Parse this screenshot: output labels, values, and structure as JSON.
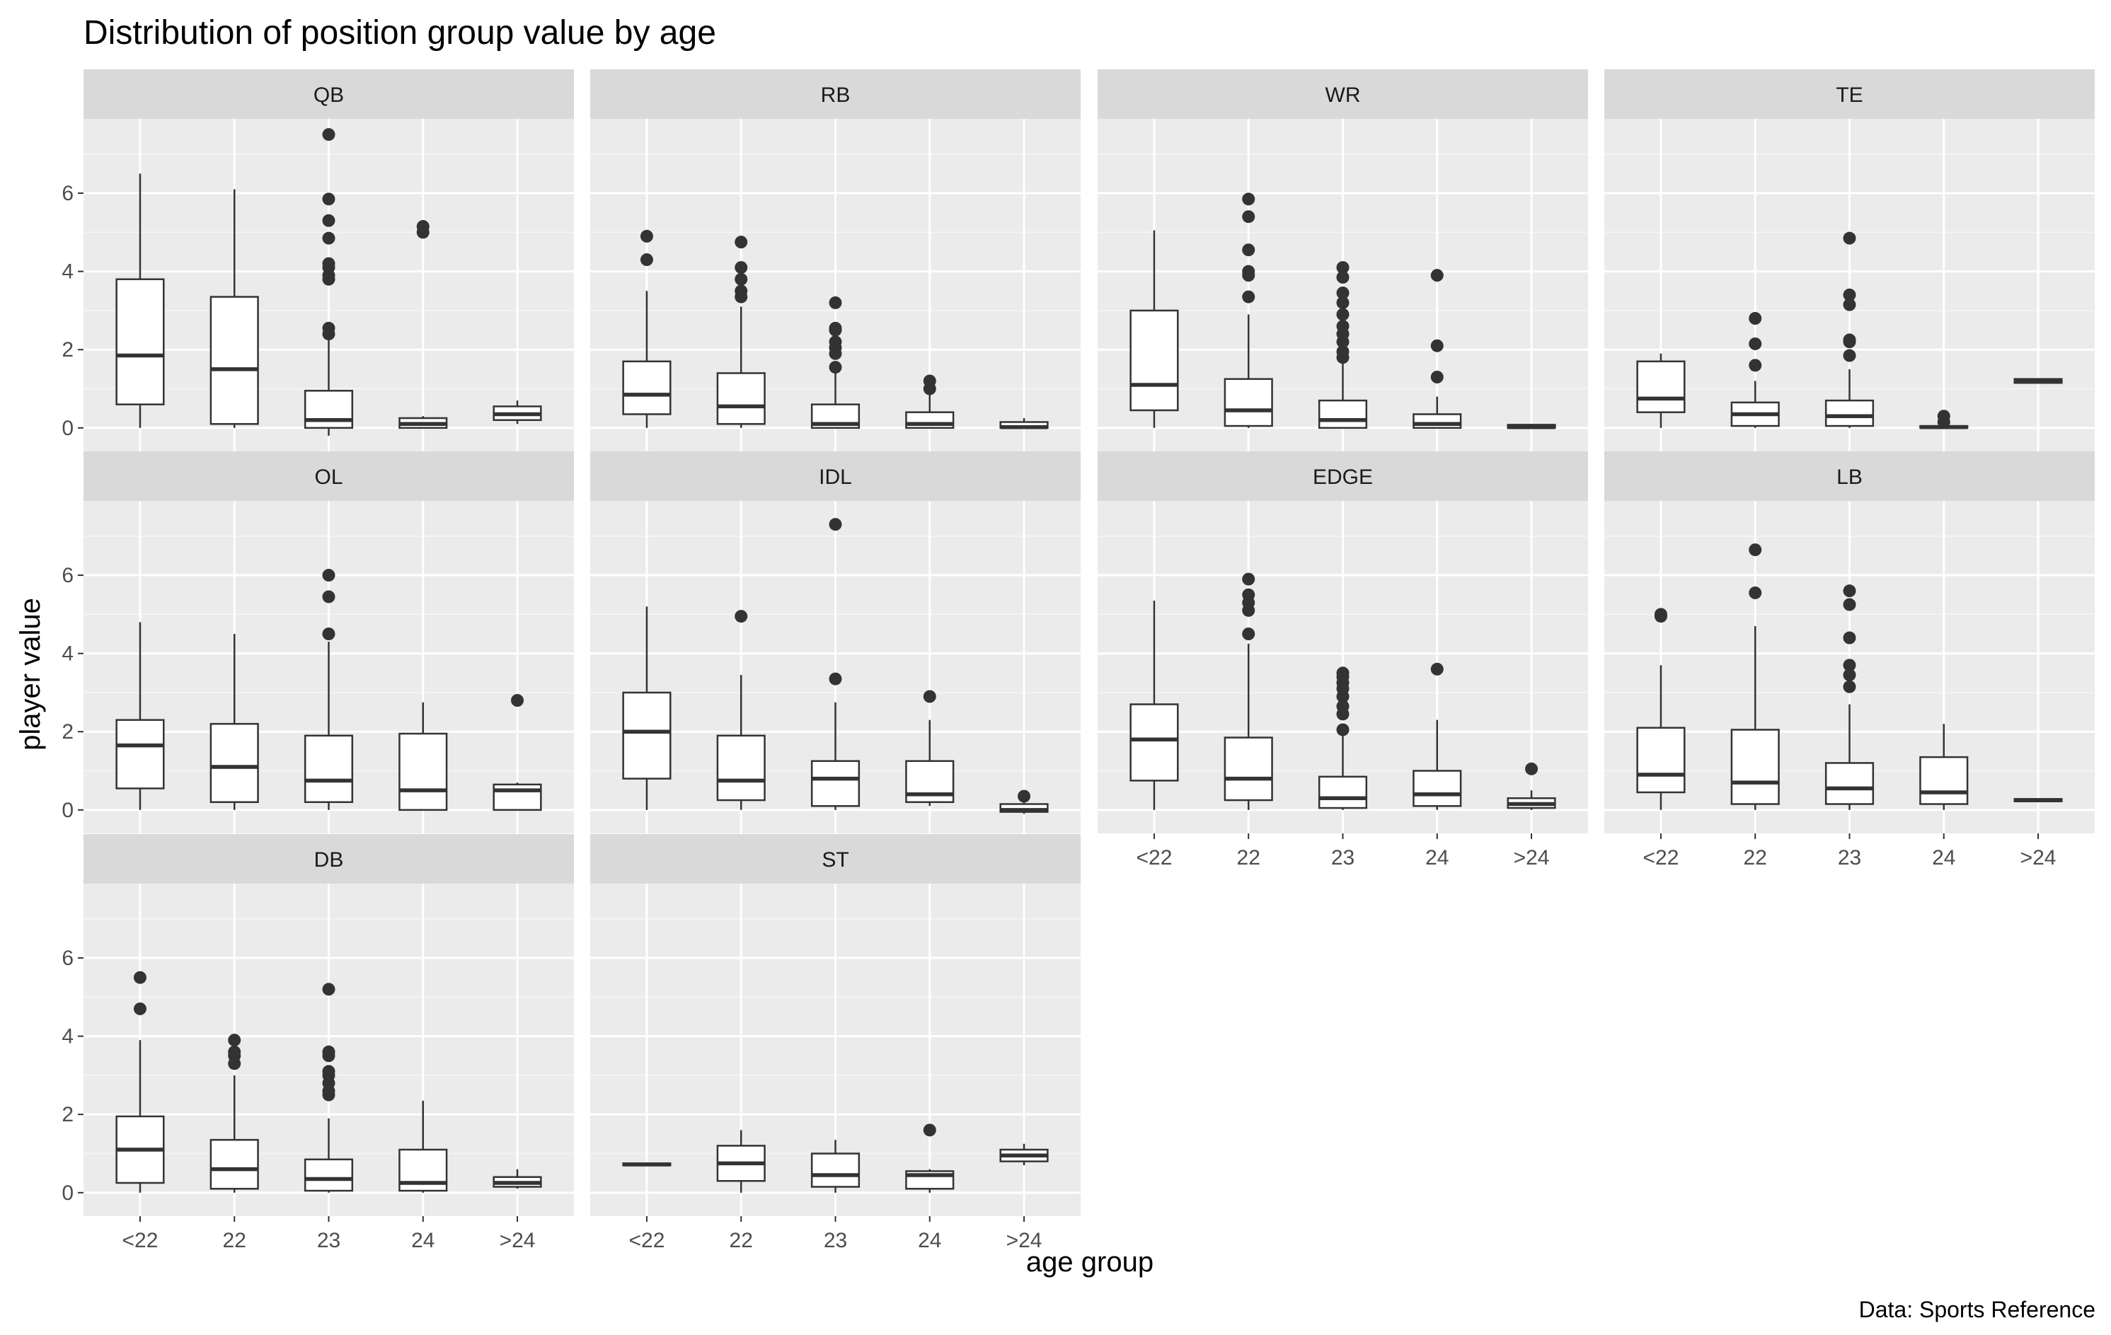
{
  "chart_data": {
    "type": "boxplot",
    "title": "Distribution of position group value by age",
    "xlabel": "age group",
    "ylabel": "player value",
    "caption": "Data: Sports Reference",
    "categories": [
      "<22",
      "22",
      "23",
      "24",
      ">24"
    ],
    "y_ticks": [
      0,
      2,
      4,
      6
    ],
    "ylim": [
      -0.6,
      7.9
    ],
    "grid": true,
    "facets": [
      {
        "name": "QB",
        "boxes": [
          {
            "q1": 0.6,
            "median": 1.85,
            "q3": 3.8,
            "lower": 0.0,
            "upper": 6.5,
            "outliers": []
          },
          {
            "q1": 0.1,
            "median": 1.5,
            "q3": 3.35,
            "lower": 0.0,
            "upper": 6.1,
            "outliers": []
          },
          {
            "q1": 0.0,
            "median": 0.2,
            "q3": 0.95,
            "lower": -0.2,
            "upper": 2.3,
            "outliers": [
              2.4,
              2.55,
              3.8,
              3.9,
              4.1,
              4.2,
              4.85,
              5.3,
              5.85,
              7.5
            ]
          },
          {
            "q1": 0.0,
            "median": 0.1,
            "q3": 0.25,
            "lower": 0.0,
            "upper": 0.3,
            "outliers": [
              5.0,
              5.15
            ]
          },
          {
            "q1": 0.2,
            "median": 0.35,
            "q3": 0.55,
            "lower": 0.1,
            "upper": 0.7,
            "outliers": []
          }
        ]
      },
      {
        "name": "RB",
        "boxes": [
          {
            "q1": 0.35,
            "median": 0.85,
            "q3": 1.7,
            "lower": 0.0,
            "upper": 3.5,
            "outliers": [
              4.3,
              4.9
            ]
          },
          {
            "q1": 0.1,
            "median": 0.55,
            "q3": 1.4,
            "lower": 0.0,
            "upper": 3.1,
            "outliers": [
              3.35,
              3.5,
              3.8,
              4.1,
              4.75
            ]
          },
          {
            "q1": 0.0,
            "median": 0.1,
            "q3": 0.6,
            "lower": 0.0,
            "upper": 1.4,
            "outliers": [
              1.55,
              1.9,
              2.05,
              2.2,
              2.5,
              2.55,
              3.2
            ]
          },
          {
            "q1": 0.0,
            "median": 0.1,
            "q3": 0.4,
            "lower": 0.0,
            "upper": 0.9,
            "outliers": [
              1.0,
              1.2
            ]
          },
          {
            "q1": 0.0,
            "median": 0.02,
            "q3": 0.15,
            "lower": 0.0,
            "upper": 0.25,
            "outliers": []
          }
        ]
      },
      {
        "name": "WR",
        "boxes": [
          {
            "q1": 0.45,
            "median": 1.1,
            "q3": 3.0,
            "lower": 0.0,
            "upper": 5.05,
            "outliers": []
          },
          {
            "q1": 0.05,
            "median": 0.45,
            "q3": 1.25,
            "lower": 0.0,
            "upper": 2.9,
            "outliers": [
              3.35,
              3.9,
              4.0,
              4.55,
              5.4,
              5.85
            ]
          },
          {
            "q1": 0.0,
            "median": 0.2,
            "q3": 0.7,
            "lower": 0.0,
            "upper": 1.7,
            "outliers": [
              1.8,
              1.95,
              2.2,
              2.4,
              2.6,
              2.9,
              3.2,
              3.45,
              3.85,
              4.1
            ]
          },
          {
            "q1": 0.0,
            "median": 0.1,
            "q3": 0.35,
            "lower": 0.0,
            "upper": 0.8,
            "outliers": [
              1.3,
              2.1,
              3.9
            ]
          },
          {
            "q1": 0.0,
            "median": 0.02,
            "q3": 0.08,
            "lower": 0.0,
            "upper": 0.1,
            "outliers": []
          }
        ]
      },
      {
        "name": "TE",
        "boxes": [
          {
            "q1": 0.4,
            "median": 0.75,
            "q3": 1.7,
            "lower": 0.0,
            "upper": 1.9,
            "outliers": []
          },
          {
            "q1": 0.05,
            "median": 0.35,
            "q3": 0.65,
            "lower": 0.0,
            "upper": 1.2,
            "outliers": [
              1.6,
              2.15,
              2.8
            ]
          },
          {
            "q1": 0.05,
            "median": 0.3,
            "q3": 0.7,
            "lower": 0.0,
            "upper": 1.5,
            "outliers": [
              1.85,
              2.2,
              2.25,
              3.15,
              3.4,
              4.85
            ]
          },
          {
            "q1": 0.0,
            "median": 0.02,
            "q3": 0.05,
            "lower": 0.0,
            "upper": 0.1,
            "outliers": [
              0.15,
              0.3
            ]
          },
          {
            "q1": 1.15,
            "median": 1.2,
            "q3": 1.25,
            "lower": 1.15,
            "upper": 1.25,
            "outliers": []
          }
        ]
      },
      {
        "name": "OL",
        "boxes": [
          {
            "q1": 0.55,
            "median": 1.65,
            "q3": 2.3,
            "lower": 0.0,
            "upper": 4.8,
            "outliers": []
          },
          {
            "q1": 0.2,
            "median": 1.1,
            "q3": 2.2,
            "lower": 0.0,
            "upper": 4.5,
            "outliers": []
          },
          {
            "q1": 0.2,
            "median": 0.75,
            "q3": 1.9,
            "lower": 0.0,
            "upper": 4.3,
            "outliers": [
              4.5,
              5.45,
              6.0
            ]
          },
          {
            "q1": 0.0,
            "median": 0.5,
            "q3": 1.95,
            "lower": 0.0,
            "upper": 2.75,
            "outliers": []
          },
          {
            "q1": 0.0,
            "median": 0.5,
            "q3": 0.65,
            "lower": 0.0,
            "upper": 0.7,
            "outliers": [
              2.8
            ]
          }
        ]
      },
      {
        "name": "IDL",
        "boxes": [
          {
            "q1": 0.8,
            "median": 2.0,
            "q3": 3.0,
            "lower": 0.0,
            "upper": 5.2,
            "outliers": []
          },
          {
            "q1": 0.25,
            "median": 0.75,
            "q3": 1.9,
            "lower": 0.0,
            "upper": 3.45,
            "outliers": [
              4.95
            ]
          },
          {
            "q1": 0.1,
            "median": 0.8,
            "q3": 1.25,
            "lower": 0.0,
            "upper": 2.75,
            "outliers": [
              3.35,
              7.3
            ]
          },
          {
            "q1": 0.2,
            "median": 0.4,
            "q3": 1.25,
            "lower": 0.1,
            "upper": 2.3,
            "outliers": [
              2.9
            ]
          },
          {
            "q1": -0.05,
            "median": 0.0,
            "q3": 0.15,
            "lower": -0.1,
            "upper": 0.2,
            "outliers": [
              0.35
            ]
          }
        ]
      },
      {
        "name": "EDGE",
        "boxes": [
          {
            "q1": 0.75,
            "median": 1.8,
            "q3": 2.7,
            "lower": 0.0,
            "upper": 5.35,
            "outliers": []
          },
          {
            "q1": 0.25,
            "median": 0.8,
            "q3": 1.85,
            "lower": 0.0,
            "upper": 4.25,
            "outliers": [
              4.5,
              5.1,
              5.3,
              5.5,
              5.9
            ]
          },
          {
            "q1": 0.05,
            "median": 0.3,
            "q3": 0.85,
            "lower": 0.0,
            "upper": 1.9,
            "outliers": [
              2.05,
              2.45,
              2.65,
              2.9,
              3.1,
              3.25,
              3.4,
              3.5
            ]
          },
          {
            "q1": 0.1,
            "median": 0.4,
            "q3": 1.0,
            "lower": 0.0,
            "upper": 2.3,
            "outliers": [
              3.6
            ]
          },
          {
            "q1": 0.05,
            "median": 0.15,
            "q3": 0.3,
            "lower": 0.0,
            "upper": 0.5,
            "outliers": [
              1.05
            ]
          }
        ]
      },
      {
        "name": "LB",
        "boxes": [
          {
            "q1": 0.45,
            "median": 0.9,
            "q3": 2.1,
            "lower": 0.0,
            "upper": 3.7,
            "outliers": [
              4.95,
              5.0
            ]
          },
          {
            "q1": 0.15,
            "median": 0.7,
            "q3": 2.05,
            "lower": 0.0,
            "upper": 4.7,
            "outliers": [
              5.55,
              6.65
            ]
          },
          {
            "q1": 0.15,
            "median": 0.55,
            "q3": 1.2,
            "lower": 0.0,
            "upper": 2.7,
            "outliers": [
              3.15,
              3.45,
              3.7,
              4.4,
              5.25,
              5.6
            ]
          },
          {
            "q1": 0.15,
            "median": 0.45,
            "q3": 1.35,
            "lower": 0.0,
            "upper": 2.2,
            "outliers": []
          },
          {
            "q1": 0.22,
            "median": 0.25,
            "q3": 0.28,
            "lower": 0.2,
            "upper": 0.3,
            "outliers": []
          }
        ]
      },
      {
        "name": "DB",
        "boxes": [
          {
            "q1": 0.25,
            "median": 1.1,
            "q3": 1.95,
            "lower": 0.0,
            "upper": 3.9,
            "outliers": [
              4.7,
              5.5
            ]
          },
          {
            "q1": 0.1,
            "median": 0.6,
            "q3": 1.35,
            "lower": 0.0,
            "upper": 3.0,
            "outliers": [
              3.3,
              3.5,
              3.6,
              3.9
            ]
          },
          {
            "q1": 0.05,
            "median": 0.35,
            "q3": 0.85,
            "lower": 0.0,
            "upper": 1.9,
            "outliers": [
              2.5,
              2.6,
              2.8,
              3.0,
              3.1,
              3.5,
              3.6,
              5.2
            ]
          },
          {
            "q1": 0.05,
            "median": 0.25,
            "q3": 1.1,
            "lower": 0.0,
            "upper": 2.35,
            "outliers": []
          },
          {
            "q1": 0.15,
            "median": 0.25,
            "q3": 0.4,
            "lower": 0.1,
            "upper": 0.6,
            "outliers": []
          }
        ]
      },
      {
        "name": "ST",
        "boxes": [
          {
            "q1": 0.7,
            "median": 0.72,
            "q3": 0.75,
            "lower": 0.7,
            "upper": 0.75,
            "outliers": []
          },
          {
            "q1": 0.3,
            "median": 0.75,
            "q3": 1.2,
            "lower": 0.0,
            "upper": 1.6,
            "outliers": []
          },
          {
            "q1": 0.15,
            "median": 0.45,
            "q3": 1.0,
            "lower": 0.0,
            "upper": 1.35,
            "outliers": []
          },
          {
            "q1": 0.1,
            "median": 0.45,
            "q3": 0.55,
            "lower": 0.0,
            "upper": 0.6,
            "outliers": [
              1.6
            ]
          },
          {
            "q1": 0.8,
            "median": 0.95,
            "q3": 1.1,
            "lower": 0.7,
            "upper": 1.25,
            "outliers": []
          }
        ]
      }
    ]
  }
}
